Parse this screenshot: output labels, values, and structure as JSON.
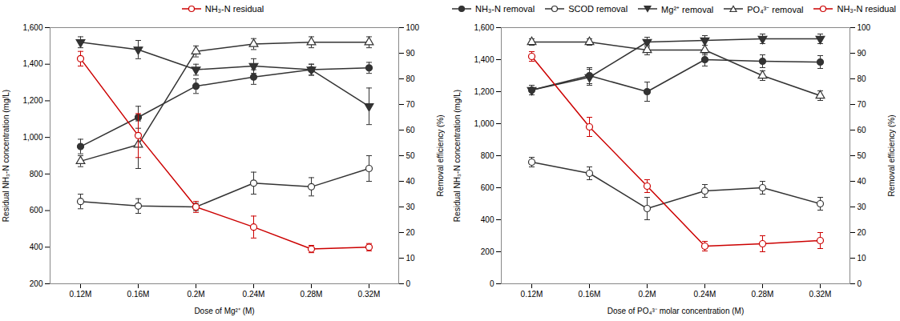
{
  "chart_data": [
    {
      "type": "line",
      "categories": [
        "0.12M",
        "0.16M",
        "0.2M",
        "0.24M",
        "0.28M",
        "0.32M"
      ],
      "xlabel": "Dose of Mg²⁺ (M)",
      "ylabel": "Residual NH₃-N concentration (mg/L)",
      "y2label": "Removal efficiency (%)",
      "ylim": [
        200,
        1600
      ],
      "yticks": [
        200,
        400,
        600,
        800,
        1000,
        1200,
        1400,
        1600
      ],
      "y2lim": [
        0,
        100
      ],
      "y2ticks": [
        0,
        10,
        20,
        30,
        40,
        50,
        60,
        70,
        80,
        90,
        100
      ],
      "grid": false,
      "series": [
        {
          "color": "#333333",
          "marker": "circle",
          "values": [
            950,
            1110,
            1280,
            1330,
            1370,
            1380
          ],
          "errors": [
            40,
            60,
            40,
            40,
            30,
            30
          ]
        },
        {
          "color": "#333333",
          "marker": "open circle",
          "values": [
            650,
            625,
            620,
            750,
            730,
            830
          ],
          "errors": [
            40,
            40,
            20,
            60,
            50,
            70
          ]
        },
        {
          "color": "#333333",
          "marker": "down triangle",
          "values": [
            1520,
            1480,
            1370,
            1390,
            1370,
            1170
          ],
          "errors": [
            30,
            50,
            30,
            40,
            30,
            100
          ]
        },
        {
          "color": "#333333",
          "marker": "open triangle",
          "values": [
            870,
            960,
            1470,
            1510,
            1520,
            1520
          ],
          "errors": [
            30,
            130,
            30,
            30,
            30,
            30
          ]
        },
        {
          "name": "NH₃-N residual",
          "color": "#cc0000",
          "marker": "open circle",
          "values": [
            1430,
            1010,
            620,
            510,
            390,
            400
          ],
          "errors": [
            40,
            120,
            30,
            60,
            20,
            20
          ]
        }
      ]
    },
    {
      "type": "line",
      "categories": [
        "0.12M",
        "0.16M",
        "0.2M",
        "0.24M",
        "0.28M",
        "0.32M"
      ],
      "xlabel": "Dose of PO₄³⁻ molar concentration (M)",
      "ylabel": "Residual NH₃-N concentration (mg/L)",
      "y2label": "Removal efficiency (%)",
      "ylim": [
        0,
        1600
      ],
      "yticks": [
        0,
        200,
        400,
        600,
        800,
        1000,
        1200,
        1400,
        1600
      ],
      "y2lim": [
        0,
        100
      ],
      "y2ticks": [
        0,
        10,
        20,
        30,
        40,
        50,
        60,
        70,
        80,
        90,
        100
      ],
      "grid": false,
      "series": [
        {
          "name": "NH₃-N removal",
          "color": "#333333",
          "marker": "circle",
          "values": [
            1210,
            1300,
            1200,
            1400,
            1390,
            1385
          ],
          "errors": [
            30,
            50,
            60,
            40,
            40,
            40
          ]
        },
        {
          "name": "SCOD removal",
          "color": "#333333",
          "marker": "open circle",
          "values": [
            760,
            690,
            470,
            580,
            600,
            500
          ],
          "errors": [
            30,
            40,
            70,
            40,
            40,
            40
          ]
        },
        {
          "name": "Mg²⁺ removal",
          "color": "#333333",
          "marker": "down triangle",
          "values": [
            1210,
            1290,
            1510,
            1520,
            1530,
            1530
          ],
          "errors": [
            30,
            50,
            30,
            30,
            30,
            30
          ]
        },
        {
          "name": "PO₄³⁻ removal",
          "color": "#333333",
          "marker": "open triangle",
          "values": [
            1510,
            1510,
            1460,
            1460,
            1300,
            1175
          ],
          "errors": [
            20,
            20,
            30,
            30,
            30,
            30
          ]
        },
        {
          "name": "NH₃-N residual",
          "color": "#cc0000",
          "marker": "open circle",
          "values": [
            1420,
            980,
            610,
            235,
            250,
            270
          ],
          "errors": [
            30,
            60,
            40,
            30,
            50,
            50
          ]
        }
      ]
    }
  ]
}
